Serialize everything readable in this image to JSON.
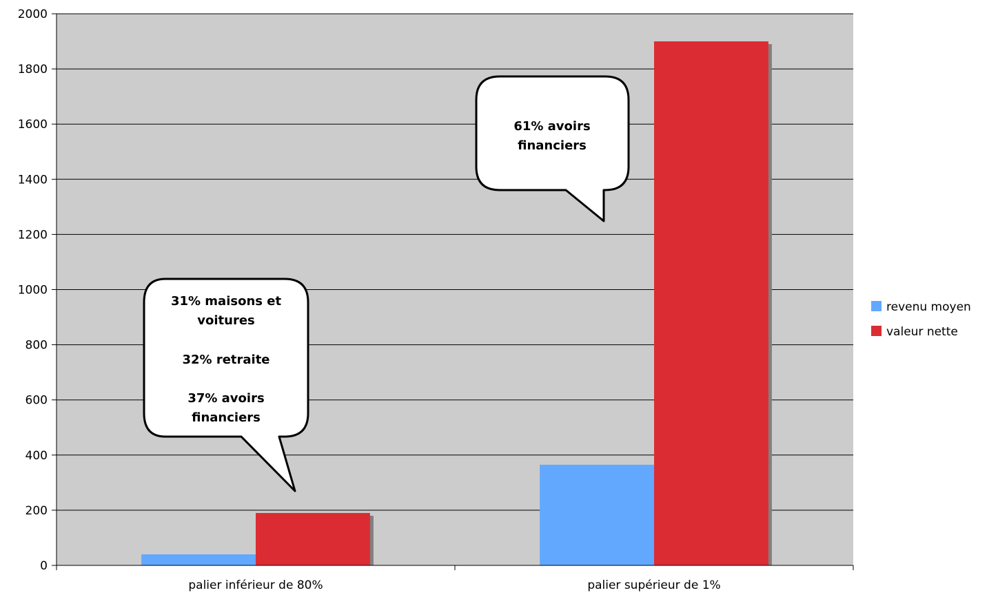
{
  "chart_data": {
    "type": "bar",
    "categories": [
      "palier inférieur de 80%",
      "palier supérieur de 1%"
    ],
    "series": [
      {
        "name": "revenu moyen",
        "values": [
          40,
          365
        ],
        "color": "#62a8ff"
      },
      {
        "name": "valeur nette",
        "values": [
          190,
          1900
        ],
        "color": "#dc2c33"
      }
    ],
    "ylim": [
      0,
      2000
    ],
    "yticks": [
      0,
      200,
      400,
      600,
      800,
      1000,
      1200,
      1400,
      1600,
      1800,
      2000
    ],
    "grid": true,
    "plot_background": "#cccccc",
    "legend_position": "right",
    "annotations": [
      {
        "category_index": 0,
        "lines": [
          "31% maisons et",
          "voitures",
          "",
          "32% retraite",
          "",
          "37% avoirs",
          "financiers"
        ]
      },
      {
        "category_index": 1,
        "lines": [
          "61% avoirs",
          "financiers"
        ]
      }
    ]
  }
}
